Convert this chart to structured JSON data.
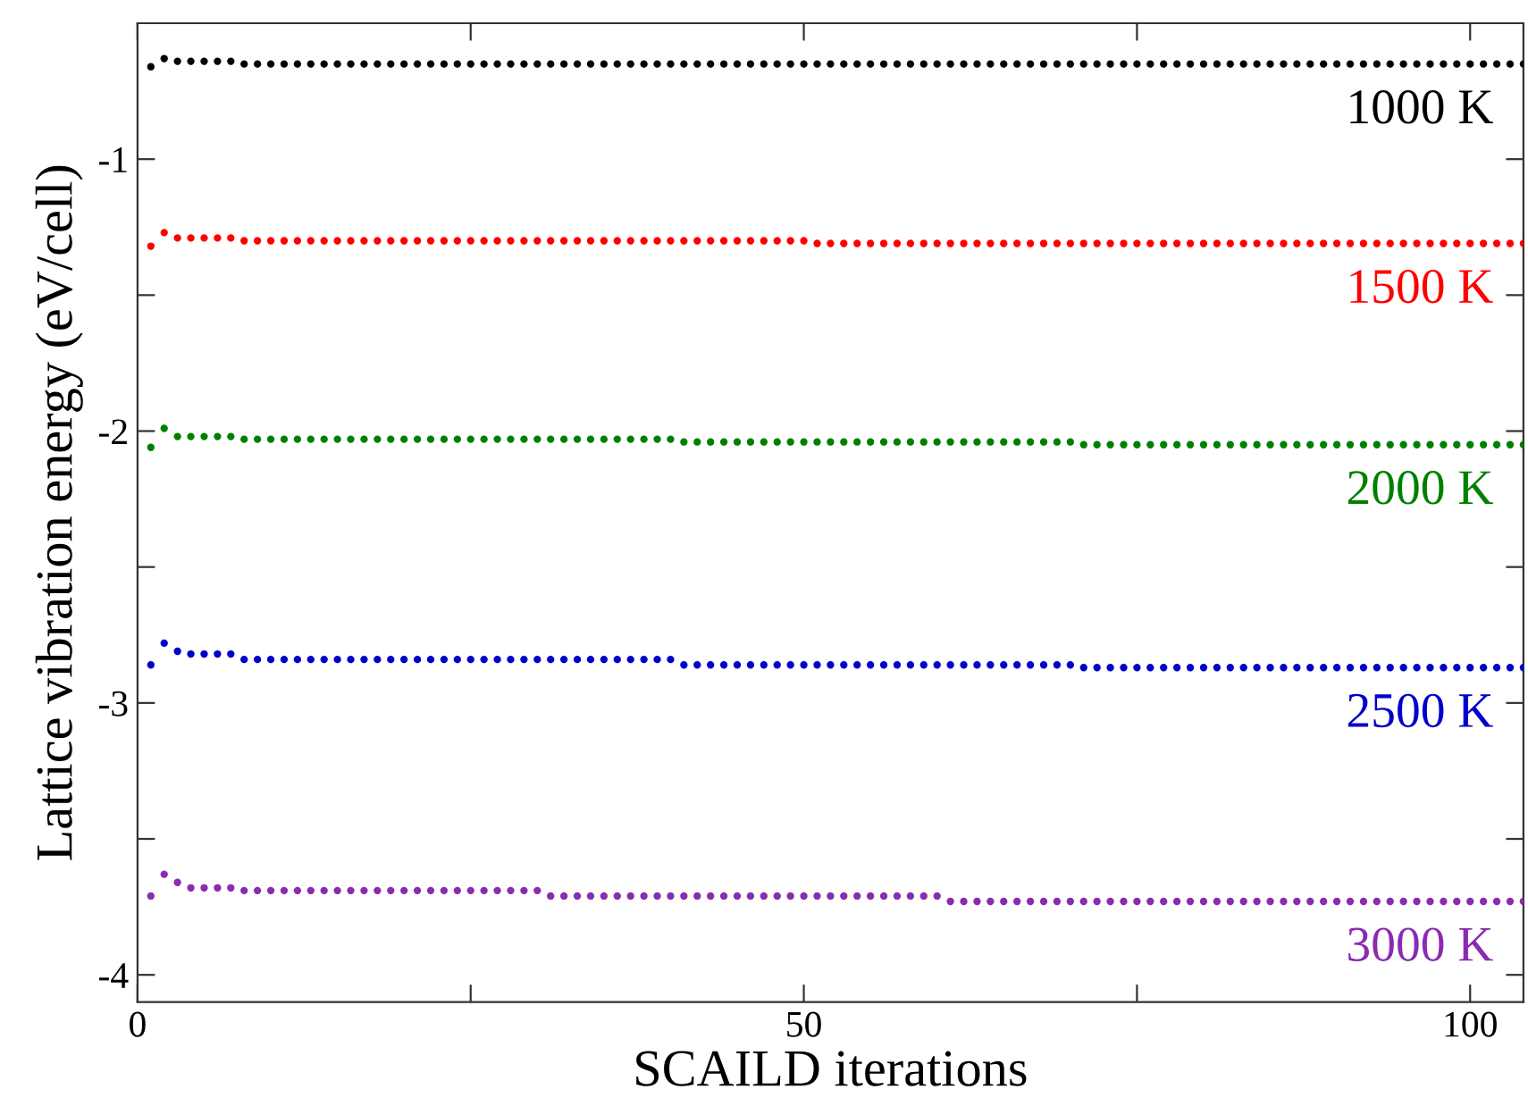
{
  "chart_data": {
    "type": "scatter",
    "xlabel": "SCAILD iterations",
    "ylabel": "Lattice vibration energy (eV/cell)",
    "x": [
      1,
      2,
      3,
      4,
      5,
      6,
      7,
      8,
      9,
      10,
      11,
      12,
      13,
      14,
      15,
      16,
      17,
      18,
      19,
      20,
      21,
      22,
      23,
      24,
      25,
      26,
      27,
      28,
      29,
      30,
      31,
      32,
      33,
      34,
      35,
      36,
      37,
      38,
      39,
      40,
      41,
      42,
      43,
      44,
      45,
      46,
      47,
      48,
      49,
      50,
      51,
      52,
      53,
      54,
      55,
      56,
      57,
      58,
      59,
      60,
      61,
      62,
      63,
      64,
      65,
      66,
      67,
      68,
      69,
      70,
      71,
      72,
      73,
      74,
      75,
      76,
      77,
      78,
      79,
      80,
      81,
      82,
      83,
      84,
      85,
      86,
      87,
      88,
      89,
      90,
      91,
      92,
      93,
      94,
      95,
      96,
      97,
      98,
      99,
      100,
      101,
      102,
      103,
      104
    ],
    "xlim": [
      0,
      104
    ],
    "xticks": [
      0,
      {
        "value": 25,
        "label": null
      },
      50,
      {
        "value": 75,
        "label": null
      },
      100
    ],
    "ylim": [
      -4.1,
      -0.5
    ],
    "yticks": [
      -4,
      {
        "value": -3.5,
        "label": null
      },
      -3,
      {
        "value": -2.5,
        "label": null
      },
      -2,
      {
        "value": -1.5,
        "label": null
      },
      -1
    ],
    "marker": "circle",
    "grid": false,
    "legend": false,
    "series": [
      {
        "name": "1000 K",
        "color": "#000000",
        "values": [
          -0.66,
          -0.63,
          -0.64,
          -0.64,
          -0.64,
          -0.64,
          -0.64,
          -0.65,
          -0.65,
          -0.65,
          -0.65,
          -0.65,
          -0.65,
          -0.65,
          -0.65,
          -0.65,
          -0.65,
          -0.65,
          -0.65,
          -0.65,
          -0.65,
          -0.65,
          -0.65,
          -0.65,
          -0.65,
          -0.65,
          -0.65,
          -0.65,
          -0.65,
          -0.65,
          -0.65,
          -0.65,
          -0.65,
          -0.65,
          -0.65,
          -0.65,
          -0.65,
          -0.65,
          -0.65,
          -0.65,
          -0.65,
          -0.65,
          -0.65,
          -0.65,
          -0.65,
          -0.65,
          -0.65,
          -0.65,
          -0.65,
          -0.65,
          -0.65,
          -0.65,
          -0.65,
          -0.65,
          -0.65,
          -0.65,
          -0.65,
          -0.65,
          -0.65,
          -0.65,
          -0.65,
          -0.65,
          -0.65,
          -0.65,
          -0.65,
          -0.65,
          -0.65,
          -0.65,
          -0.65,
          -0.65,
          -0.65,
          -0.65,
          -0.65,
          -0.65,
          -0.65,
          -0.65,
          -0.65,
          -0.65,
          -0.65,
          -0.65,
          -0.65,
          -0.65,
          -0.65,
          -0.65,
          -0.65,
          -0.65,
          -0.65,
          -0.65,
          -0.65,
          -0.65,
          -0.65,
          -0.65,
          -0.65,
          -0.65,
          -0.65,
          -0.65,
          -0.65,
          -0.65,
          -0.65,
          -0.65,
          -0.65,
          -0.65,
          -0.65,
          -0.65
        ]
      },
      {
        "name": "1500 K",
        "color": "#ff0000",
        "values": [
          -1.32,
          -1.27,
          -1.29,
          -1.29,
          -1.29,
          -1.29,
          -1.29,
          -1.3,
          -1.3,
          -1.3,
          -1.3,
          -1.3,
          -1.3,
          -1.3,
          -1.3,
          -1.3,
          -1.3,
          -1.3,
          -1.3,
          -1.3,
          -1.3,
          -1.3,
          -1.3,
          -1.3,
          -1.3,
          -1.3,
          -1.3,
          -1.3,
          -1.3,
          -1.3,
          -1.3,
          -1.3,
          -1.3,
          -1.3,
          -1.3,
          -1.3,
          -1.3,
          -1.3,
          -1.3,
          -1.3,
          -1.3,
          -1.3,
          -1.3,
          -1.3,
          -1.3,
          -1.3,
          -1.3,
          -1.3,
          -1.3,
          -1.3,
          -1.31,
          -1.31,
          -1.31,
          -1.31,
          -1.31,
          -1.31,
          -1.31,
          -1.31,
          -1.31,
          -1.31,
          -1.31,
          -1.31,
          -1.31,
          -1.31,
          -1.31,
          -1.31,
          -1.31,
          -1.31,
          -1.31,
          -1.31,
          -1.31,
          -1.31,
          -1.31,
          -1.31,
          -1.31,
          -1.31,
          -1.31,
          -1.31,
          -1.31,
          -1.31,
          -1.31,
          -1.31,
          -1.31,
          -1.31,
          -1.31,
          -1.31,
          -1.31,
          -1.31,
          -1.31,
          -1.31,
          -1.31,
          -1.31,
          -1.31,
          -1.31,
          -1.31,
          -1.31,
          -1.31,
          -1.31,
          -1.31,
          -1.31,
          -1.31,
          -1.31,
          -1.31,
          -1.31
        ]
      },
      {
        "name": "2000 K",
        "color": "#008000",
        "values": [
          -2.06,
          -1.99,
          -2.02,
          -2.02,
          -2.02,
          -2.02,
          -2.02,
          -2.03,
          -2.03,
          -2.03,
          -2.03,
          -2.03,
          -2.03,
          -2.03,
          -2.03,
          -2.03,
          -2.03,
          -2.03,
          -2.03,
          -2.03,
          -2.03,
          -2.03,
          -2.03,
          -2.03,
          -2.03,
          -2.03,
          -2.03,
          -2.03,
          -2.03,
          -2.03,
          -2.03,
          -2.03,
          -2.03,
          -2.03,
          -2.03,
          -2.03,
          -2.03,
          -2.03,
          -2.03,
          -2.03,
          -2.04,
          -2.04,
          -2.04,
          -2.04,
          -2.04,
          -2.04,
          -2.04,
          -2.04,
          -2.04,
          -2.04,
          -2.04,
          -2.04,
          -2.04,
          -2.04,
          -2.04,
          -2.04,
          -2.04,
          -2.04,
          -2.04,
          -2.04,
          -2.04,
          -2.04,
          -2.04,
          -2.04,
          -2.04,
          -2.04,
          -2.04,
          -2.04,
          -2.04,
          -2.04,
          -2.05,
          -2.05,
          -2.05,
          -2.05,
          -2.05,
          -2.05,
          -2.05,
          -2.05,
          -2.05,
          -2.05,
          -2.05,
          -2.05,
          -2.05,
          -2.05,
          -2.05,
          -2.05,
          -2.05,
          -2.05,
          -2.05,
          -2.05,
          -2.05,
          -2.05,
          -2.05,
          -2.05,
          -2.05,
          -2.05,
          -2.05,
          -2.05,
          -2.05,
          -2.05,
          -2.05,
          -2.05,
          -2.05,
          -2.05
        ]
      },
      {
        "name": "2500 K",
        "color": "#0000cc",
        "values": [
          -2.86,
          -2.78,
          -2.81,
          -2.82,
          -2.82,
          -2.82,
          -2.82,
          -2.84,
          -2.84,
          -2.84,
          -2.84,
          -2.84,
          -2.84,
          -2.84,
          -2.84,
          -2.84,
          -2.84,
          -2.84,
          -2.84,
          -2.84,
          -2.84,
          -2.84,
          -2.84,
          -2.84,
          -2.84,
          -2.84,
          -2.84,
          -2.84,
          -2.84,
          -2.84,
          -2.84,
          -2.84,
          -2.84,
          -2.84,
          -2.84,
          -2.84,
          -2.84,
          -2.84,
          -2.84,
          -2.84,
          -2.86,
          -2.86,
          -2.86,
          -2.86,
          -2.86,
          -2.86,
          -2.86,
          -2.86,
          -2.86,
          -2.86,
          -2.86,
          -2.86,
          -2.86,
          -2.86,
          -2.86,
          -2.86,
          -2.86,
          -2.86,
          -2.86,
          -2.86,
          -2.86,
          -2.86,
          -2.86,
          -2.86,
          -2.86,
          -2.86,
          -2.86,
          -2.86,
          -2.86,
          -2.86,
          -2.87,
          -2.87,
          -2.87,
          -2.87,
          -2.87,
          -2.87,
          -2.87,
          -2.87,
          -2.87,
          -2.87,
          -2.87,
          -2.87,
          -2.87,
          -2.87,
          -2.87,
          -2.87,
          -2.87,
          -2.87,
          -2.87,
          -2.87,
          -2.87,
          -2.87,
          -2.87,
          -2.87,
          -2.87,
          -2.87,
          -2.87,
          -2.87,
          -2.87,
          -2.87,
          -2.87,
          -2.87,
          -2.87,
          -2.87
        ]
      },
      {
        "name": "3000 K",
        "color": "#8a2bb0",
        "values": [
          -3.71,
          -3.63,
          -3.66,
          -3.68,
          -3.68,
          -3.68,
          -3.68,
          -3.69,
          -3.69,
          -3.69,
          -3.69,
          -3.69,
          -3.69,
          -3.69,
          -3.69,
          -3.69,
          -3.69,
          -3.69,
          -3.69,
          -3.69,
          -3.69,
          -3.69,
          -3.69,
          -3.69,
          -3.69,
          -3.69,
          -3.69,
          -3.69,
          -3.69,
          -3.69,
          -3.71,
          -3.71,
          -3.71,
          -3.71,
          -3.71,
          -3.71,
          -3.71,
          -3.71,
          -3.71,
          -3.71,
          -3.71,
          -3.71,
          -3.71,
          -3.71,
          -3.71,
          -3.71,
          -3.71,
          -3.71,
          -3.71,
          -3.71,
          -3.71,
          -3.71,
          -3.71,
          -3.71,
          -3.71,
          -3.71,
          -3.71,
          -3.71,
          -3.71,
          -3.71,
          -3.73,
          -3.73,
          -3.73,
          -3.73,
          -3.73,
          -3.73,
          -3.73,
          -3.73,
          -3.73,
          -3.73,
          -3.73,
          -3.73,
          -3.73,
          -3.73,
          -3.73,
          -3.73,
          -3.73,
          -3.73,
          -3.73,
          -3.73,
          -3.73,
          -3.73,
          -3.73,
          -3.73,
          -3.73,
          -3.73,
          -3.73,
          -3.73,
          -3.73,
          -3.73,
          -3.73,
          -3.73,
          -3.73,
          -3.73,
          -3.73,
          -3.73,
          -3.73,
          -3.73,
          -3.73,
          -3.73,
          -3.73,
          -3.73,
          -3.73,
          -3.73
        ]
      }
    ]
  }
}
